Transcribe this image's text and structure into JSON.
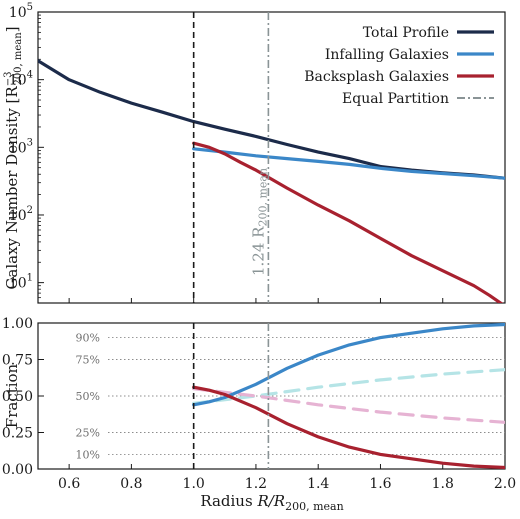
{
  "chart_data": [
    {
      "type": "line",
      "panel": "top",
      "yscale": "log",
      "ylabel": "Galaxy Number Density [R",
      "ylabel_sup": "−3",
      "ylabel_sub": "200, mean",
      "ylabel_close": "]",
      "xlim": [
        0.5,
        2.0
      ],
      "ylim": [
        5,
        100000
      ],
      "y_ticks": [
        {
          "v": 10,
          "base": "10",
          "exp": "1"
        },
        {
          "v": 100,
          "base": "10",
          "exp": "2"
        },
        {
          "v": 1000,
          "base": "10",
          "exp": "3"
        },
        {
          "v": 10000,
          "base": "10",
          "exp": "4"
        },
        {
          "v": 100000,
          "base": "10",
          "exp": "5"
        }
      ],
      "vline_dashed_x": 1.0,
      "vline_dashdot_x": 1.24,
      "annotation": {
        "prefix": "1.24 R",
        "sub": "200, mean"
      },
      "legend": {
        "placement": "top-right",
        "entries": [
          "Total Profile",
          "Infalling Galaxies",
          "Backsplash Galaxies",
          "Equal Partition"
        ]
      },
      "series": [
        {
          "name": "Total Profile",
          "color": "#1c2b4a",
          "x": [
            0.5,
            0.6,
            0.7,
            0.8,
            0.9,
            1.0,
            1.1,
            1.2,
            1.3,
            1.4,
            1.5,
            1.6,
            1.7,
            1.8,
            1.9,
            2.0
          ],
          "y": [
            19000,
            10000,
            6500,
            4500,
            3300,
            2400,
            1850,
            1450,
            1100,
            850,
            680,
            520,
            460,
            420,
            390,
            350
          ]
        },
        {
          "name": "Infalling Galaxies",
          "color": "#3b87c8",
          "x": [
            1.0,
            1.1,
            1.2,
            1.3,
            1.4,
            1.5,
            1.6,
            1.7,
            1.8,
            1.9,
            2.0
          ],
          "y": [
            950,
            850,
            750,
            680,
            620,
            560,
            490,
            440,
            410,
            380,
            350
          ]
        },
        {
          "name": "Backsplash Galaxies",
          "color": "#a8212f",
          "x": [
            1.0,
            1.05,
            1.1,
            1.15,
            1.2,
            1.3,
            1.4,
            1.5,
            1.6,
            1.7,
            1.8,
            1.9,
            1.95,
            2.0
          ],
          "y": [
            1150,
            1000,
            800,
            600,
            460,
            250,
            140,
            82,
            45,
            25,
            15,
            9,
            6.5,
            4.5
          ]
        }
      ]
    },
    {
      "type": "line",
      "panel": "bottom",
      "xlabel_prefix": "Radius ",
      "xlabel_main": "R/R",
      "xlabel_sub": "200, mean",
      "ylabel": "Fraction",
      "xlim": [
        0.5,
        2.0
      ],
      "ylim": [
        0.0,
        1.0
      ],
      "x_ticks": [
        "0.6",
        "0.8",
        "1.0",
        "1.2",
        "1.4",
        "1.6",
        "1.8",
        "2.0"
      ],
      "y_ticks": [
        "0.00",
        "0.25",
        "0.50",
        "0.75",
        "1.00"
      ],
      "reference_levels": [
        {
          "y": 0.9,
          "label": "90%"
        },
        {
          "y": 0.75,
          "label": "75%"
        },
        {
          "y": 0.5,
          "label": "50%"
        },
        {
          "y": 0.25,
          "label": "25%"
        },
        {
          "y": 0.1,
          "label": "10%"
        }
      ],
      "series": [
        {
          "name": "Infalling Galaxies",
          "color": "#3b87c8",
          "style": "solid",
          "x": [
            1.0,
            1.05,
            1.1,
            1.2,
            1.3,
            1.4,
            1.5,
            1.6,
            1.7,
            1.8,
            1.9,
            2.0
          ],
          "y": [
            0.44,
            0.46,
            0.49,
            0.58,
            0.69,
            0.78,
            0.85,
            0.9,
            0.93,
            0.96,
            0.98,
            0.99
          ]
        },
        {
          "name": "Backsplash Galaxies",
          "color": "#a8212f",
          "style": "solid",
          "x": [
            1.0,
            1.05,
            1.1,
            1.2,
            1.3,
            1.4,
            1.5,
            1.6,
            1.7,
            1.8,
            1.9,
            2.0
          ],
          "y": [
            0.56,
            0.54,
            0.51,
            0.42,
            0.31,
            0.22,
            0.15,
            0.1,
            0.07,
            0.04,
            0.02,
            0.01
          ]
        },
        {
          "color": "#b5e4e6",
          "style": "dashed",
          "x": [
            1.0,
            1.2,
            1.4,
            1.6,
            1.8,
            2.0
          ],
          "y": [
            0.45,
            0.5,
            0.56,
            0.61,
            0.65,
            0.68
          ]
        },
        {
          "color": "#e6b3d3",
          "style": "dashed",
          "x": [
            1.0,
            1.2,
            1.4,
            1.6,
            1.8,
            2.0
          ],
          "y": [
            0.55,
            0.5,
            0.44,
            0.39,
            0.35,
            0.32
          ]
        }
      ]
    }
  ]
}
